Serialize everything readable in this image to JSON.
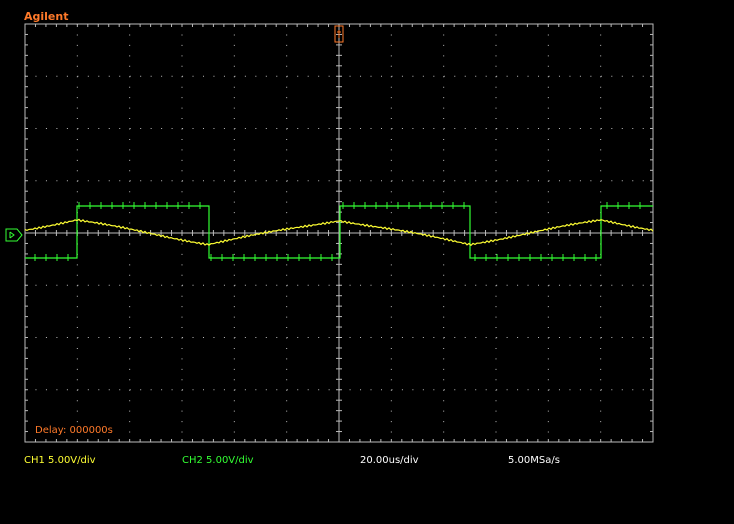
{
  "brand": "Agilent",
  "delay_text": "Delay: 000000s",
  "status": {
    "ch1": "CH1 5.00V/div",
    "ch2": "CH2 5.00V/div",
    "timebase": "20.00us/div",
    "sample_rate": "5.00MSa/s"
  },
  "colors": {
    "ch1": "#ffff33",
    "ch2": "#33ff33",
    "accent": "#ff7a2a",
    "grid": "#bbbbbb"
  },
  "icons": {
    "trigger_marker": "trigger-position-marker",
    "ground_marker": "channel-ground-marker"
  },
  "scope": {
    "divisions_x": 12,
    "divisions_y": 8
  }
}
